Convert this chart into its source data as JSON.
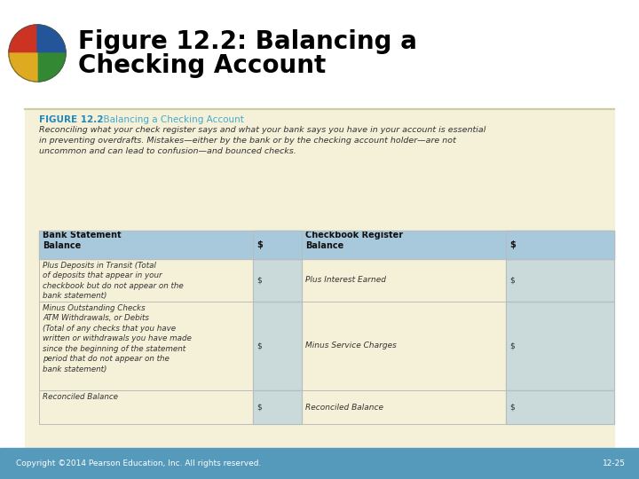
{
  "title_line1": "Figure 12.2: Balancing a",
  "title_line2": "Checking Account",
  "figure_label": "FIGURE 12.2",
  "figure_subtitle": "  Balancing a Checking Account",
  "intro_text": "Reconciling what your check register says and what your bank says you have in your account is essential\nin preventing overdrafts. Mistakes—either by the bank or by the checking account holder—are not\nuncommon and can lead to confusion—and bounced checks.",
  "header_col1": "Bank Statement\nBalance",
  "header_col2": "$",
  "header_col3": "Checkbook Register\nBalance",
  "header_col4": "$",
  "rows": [
    [
      "Plus Deposits in Transit (Total\nof deposits that appear in your\ncheckbook but do not appear on the\nbank statement)",
      "$",
      "Plus Interest Earned",
      "$"
    ],
    [
      "Minus Outstanding Checks\nATM Withdrawals, or Debits\n(Total of any checks that you have\nwritten or withdrawals you have made\nsince the beginning of the statement\nperiod that do not appear on the\nbank statement)",
      "$",
      "Minus Service Charges",
      "$"
    ],
    [
      "Reconciled Balance",
      "$",
      "Reconciled Balance",
      "$"
    ]
  ],
  "footer_text": "Copyright ©2014 Pearson Education, Inc. All rights reserved.",
  "page_num": "12-25",
  "bg_color": "#f5f0d8",
  "header_bg": "#a8c8dc",
  "title_color": "#000000",
  "figure_label_color": "#2288bb",
  "figure_subtitle_color": "#44aacc",
  "footer_bg": "#5599bb",
  "footer_text_color": "#ffffff",
  "white_bg": "#ffffff",
  "text_color": "#333333",
  "line_color": "#bbbbbb"
}
